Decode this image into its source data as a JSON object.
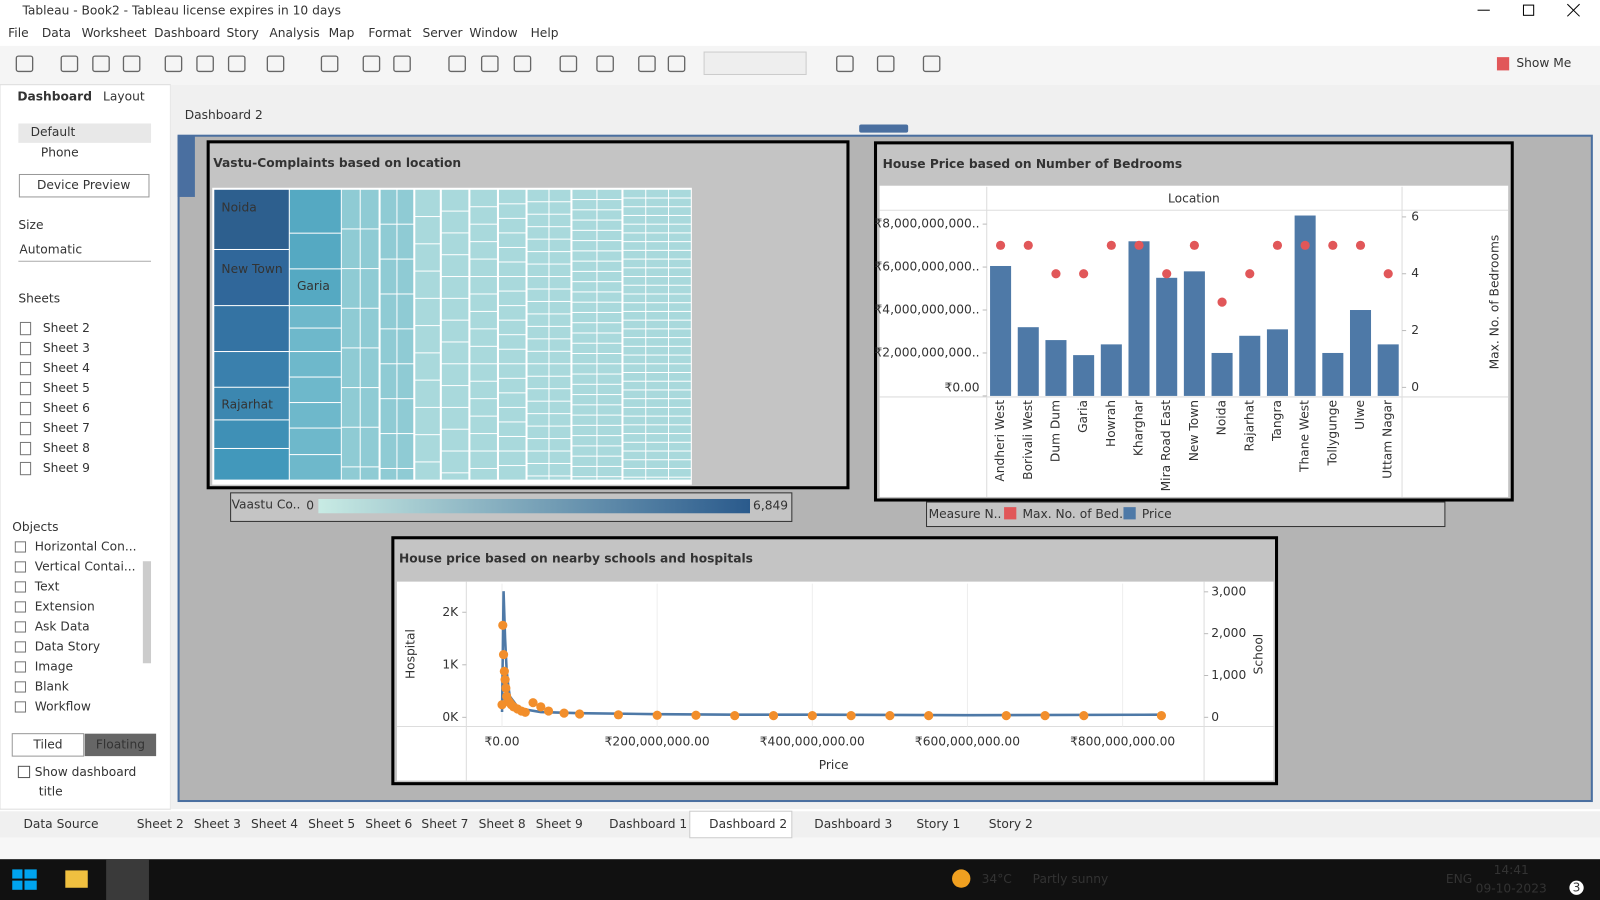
{
  "window_title": "Tableau - Book2 - Tableau license expires in 10 days",
  "menu": [
    "File",
    "Data",
    "Worksheet",
    "Dashboard",
    "Story",
    "Analysis",
    "Map",
    "Format",
    "Server",
    "Window",
    "Help"
  ],
  "toolbar": {
    "show_me": "Show Me"
  },
  "side_panel": {
    "tabs": [
      "Dashboard",
      "Layout"
    ],
    "devices": [
      "Default",
      "Phone"
    ],
    "device_preview": "Device Preview",
    "size_heading": "Size",
    "size_value": "Automatic",
    "sheets_heading": "Sheets",
    "sheets": [
      "Sheet 2",
      "Sheet 3",
      "Sheet 4",
      "Sheet 5",
      "Sheet 6",
      "Sheet 7",
      "Sheet 8",
      "Sheet 9"
    ],
    "objects_heading": "Objects",
    "objects": [
      "Horizontal Con...",
      "Vertical Contai...",
      "Text",
      "Extension",
      "Ask Data",
      "Data Story",
      "Image",
      "Blank",
      "Workflow"
    ],
    "layout_modes": [
      "Tiled",
      "Floating"
    ],
    "show_title": [
      "Show dashboard",
      "title"
    ]
  },
  "dashboard_title": "Dashboard 2",
  "chart_data": [
    {
      "type": "treemap",
      "title": "Vastu-Complaints based on location",
      "labels": [
        "Noida",
        "New Town",
        "Garia",
        "Rajarhat"
      ],
      "legend_title": "Vaastu Co..",
      "legend_range": [
        0,
        {
          "value": 6849,
          "label": "6,849"
        }
      ]
    },
    {
      "type": "bar",
      "title": "House Price based on Number of Bedrooms",
      "x_label": "Location",
      "y2_label": "Max. No. of Bedrooms",
      "legend_title": "Measure N..",
      "categories": [
        "Andheri West",
        "Borivali West",
        "Dum Dum",
        "Garia",
        "Howrah",
        "Kharghar",
        "Mira Road East",
        "New Town",
        "Noida",
        "Rajarhat",
        "Tangra",
        "Thane West",
        "Tollygunge",
        "Ulwe",
        "Uttam Nagar"
      ],
      "series": [
        {
          "name": "Price",
          "color": "#4e79a7",
          "values": [
            6050000000,
            3200000000,
            2600000000,
            1900000000,
            2400000000,
            7200000000,
            5500000000,
            5800000000,
            2000000000,
            2800000000,
            3100000000,
            8400000000,
            2000000000,
            4000000000,
            2400000000
          ]
        },
        {
          "name": "Max. No. of Bed..",
          "color": "#e15759",
          "axis": "y2",
          "values": [
            5,
            5,
            4,
            4,
            5,
            5,
            4,
            5,
            3,
            4,
            5,
            5,
            5,
            5,
            4
          ]
        }
      ],
      "ylim": [
        0,
        8600000000
      ],
      "yticks": [
        {
          "value": 0,
          "label": "₹0.00"
        },
        {
          "value": 2000000000,
          "label": "₹2,000,000,000.."
        },
        {
          "value": 4000000000,
          "label": "₹4,000,000,000.."
        },
        {
          "value": 6000000000,
          "label": "₹6,000,000,000.."
        },
        {
          "value": 8000000000,
          "label": "₹8,000,000,000.."
        }
      ],
      "y2lim": [
        -0.3,
        6.2
      ],
      "y2ticks": [
        0,
        2,
        4,
        6
      ]
    },
    {
      "type": "line",
      "title": "House price based on nearby schools and hospitals",
      "x_label": "Price",
      "y_label": "Hospital",
      "y2_label": "School",
      "xlim": [
        -46000000,
        905000000
      ],
      "xticks": [
        {
          "value": 0,
          "label": "₹0.00"
        },
        {
          "value": 200000000,
          "label": "₹200,000,000.00"
        },
        {
          "value": 400000000,
          "label": "₹400,000,000.00"
        },
        {
          "value": 600000000,
          "label": "₹600,000,000.00"
        },
        {
          "value": 800000000,
          "label": "₹800,000,000.00"
        }
      ],
      "ylim": [
        -175,
        2544
      ],
      "yticks": [
        {
          "value": 0,
          "label": "0K"
        },
        {
          "value": 1000,
          "label": "1K"
        },
        {
          "value": 2000,
          "label": "2K"
        }
      ],
      "y2lim": [
        -220,
        3195
      ],
      "y2ticks": [
        0,
        {
          "value": 1000,
          "label": "1,000"
        },
        {
          "value": 2000,
          "label": "2,000"
        },
        {
          "value": 3000,
          "label": "3,000"
        }
      ],
      "series": [
        {
          "name": "Hospital",
          "color": "#4e79a7",
          "x": [
            0,
            2000000,
            4000000,
            6000000,
            8000000,
            10000000,
            15000000,
            20000000,
            30000000,
            50000000,
            100000000,
            200000000,
            300000000,
            400000000,
            600000000,
            850000000
          ],
          "values": [
            100,
            2400,
            1500,
            900,
            600,
            400,
            300,
            200,
            150,
            100,
            80,
            60,
            50,
            50,
            40,
            50
          ]
        },
        {
          "name": "School",
          "color": "#f28e2b",
          "axis": "y2",
          "x": [
            0,
            1000000,
            2000000,
            3000000,
            4000000,
            5000000,
            6000000,
            8000000,
            10000000,
            12000000,
            15000000,
            20000000,
            25000000,
            30000000,
            40000000,
            50000000,
            60000000,
            80000000,
            100000000,
            150000000,
            200000000,
            250000000,
            300000000,
            350000000,
            400000000,
            450000000,
            500000000,
            550000000,
            650000000,
            700000000,
            750000000,
            850000000
          ],
          "values": [
            300,
            2200,
            1500,
            1100,
            900,
            700,
            500,
            400,
            350,
            300,
            250,
            200,
            150,
            120,
            350,
            250,
            150,
            100,
            80,
            60,
            50,
            50,
            40,
            40,
            40,
            40,
            40,
            40,
            40,
            40,
            40,
            40
          ]
        }
      ]
    }
  ],
  "tabs": [
    "Data Source",
    "Sheet 2",
    "Sheet 3",
    "Sheet 4",
    "Sheet 5",
    "Sheet 6",
    "Sheet 7",
    "Sheet 8",
    "Sheet 9",
    "Dashboard 1",
    "Dashboard 2",
    "Dashboard 3",
    "Story 1",
    "Story 2"
  ],
  "taskbar": {
    "temperature": "34°C",
    "weather": "Partly sunny",
    "language": "ENG",
    "time": "14:41",
    "date": "09-10-2023",
    "notifications": "3"
  }
}
